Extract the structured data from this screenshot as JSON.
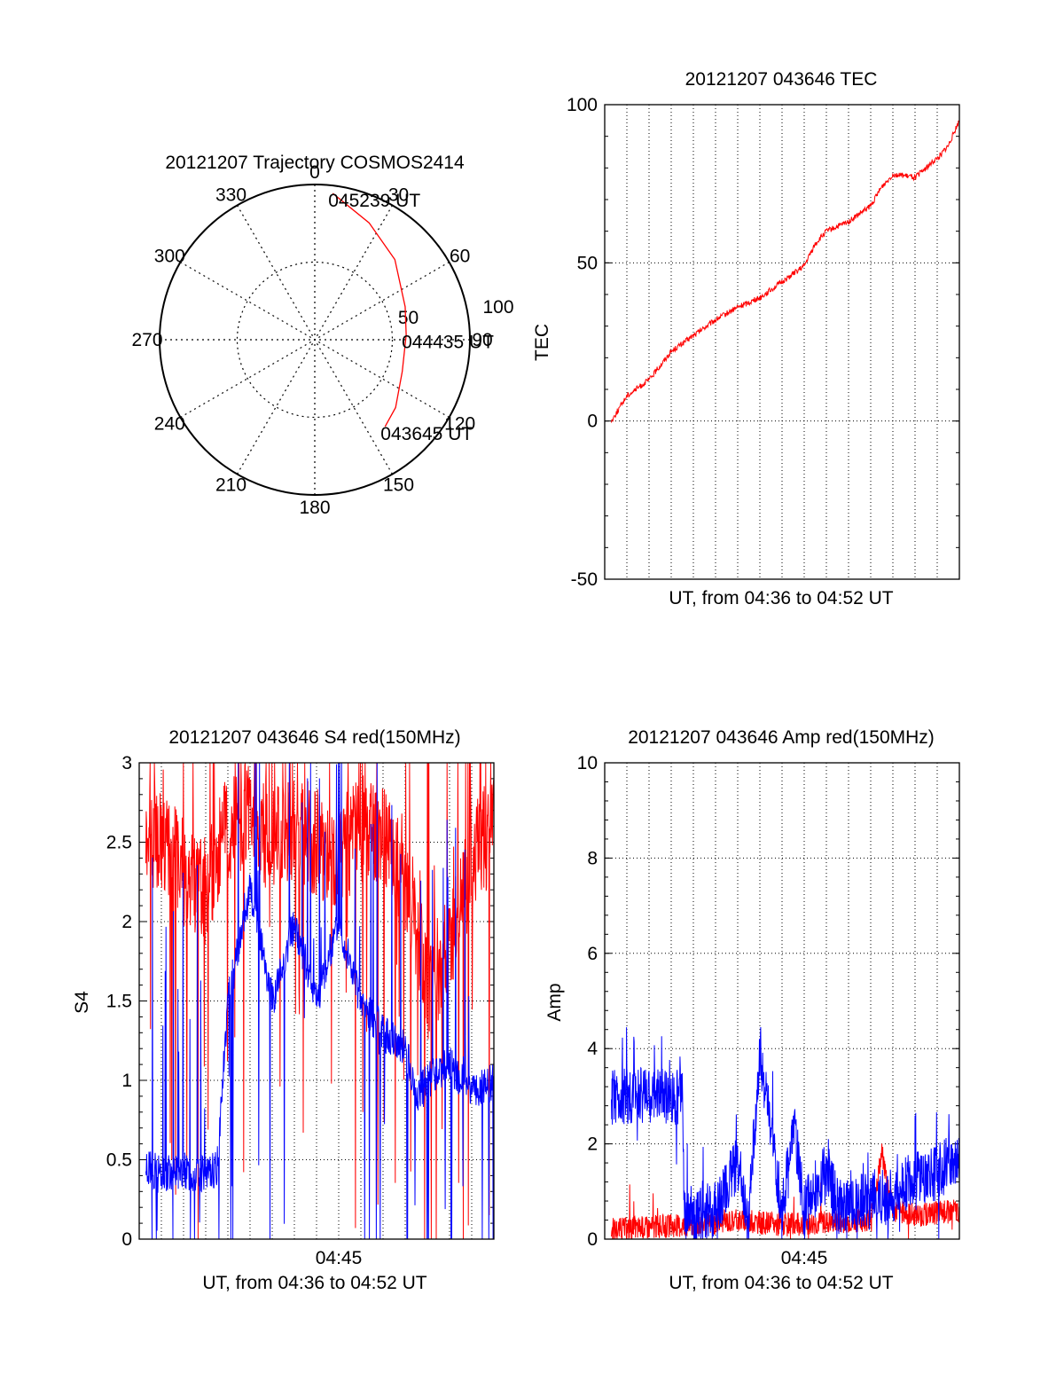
{
  "colors": {
    "red": "#ff0000",
    "blue": "#0000ff",
    "axis": "#000000",
    "grid": "#000000"
  },
  "chart_data": [
    {
      "type": "polar",
      "title": "20121207 Trajectory COSMOS2414",
      "angle_labels": [
        "0",
        "30",
        "60",
        "90",
        "120",
        "150",
        "180",
        "210",
        "240",
        "270",
        "300",
        "330"
      ],
      "radius_labels": [
        "50",
        "100"
      ],
      "rlim": [
        0,
        100
      ],
      "trajectory": {
        "color": "red",
        "points": [
          {
            "az": 7,
            "r": 95,
            "time": "045239 UT"
          },
          {
            "az": 25,
            "r": 83
          },
          {
            "az": 45,
            "r": 73
          },
          {
            "az": 70,
            "r": 62
          },
          {
            "az": 87,
            "r": 59,
            "time": "044435 UT"
          },
          {
            "az": 110,
            "r": 60
          },
          {
            "az": 130,
            "r": 68
          },
          {
            "az": 141,
            "r": 72,
            "time": "043645 UT"
          }
        ]
      },
      "annotations": [
        "045239 UT",
        "044435 UT",
        "043645 UT"
      ]
    },
    {
      "type": "line",
      "title": "20121207 043646 TEC",
      "xlabel": "UT, from 04:36 to 04:52 UT",
      "ylabel": "TEC",
      "xlim": [
        0,
        16
      ],
      "ylim": [
        -50,
        100
      ],
      "yticks": [
        "-50",
        "0",
        "50",
        "100"
      ],
      "grid": true,
      "series": [
        {
          "color": "red",
          "x": [
            0.3,
            1.0,
            2.0,
            3.0,
            4.0,
            5.0,
            6.0,
            7.0,
            8.0,
            9.0,
            9.5,
            10.0,
            11.0,
            12.0,
            12.5,
            13.0,
            14.0,
            14.5,
            15.0,
            15.5,
            16.0
          ],
          "y": [
            0,
            8,
            13,
            22,
            27,
            32,
            36,
            39,
            44,
            49,
            56,
            60,
            63,
            68,
            74,
            78,
            77,
            80,
            83,
            87,
            95
          ]
        }
      ]
    },
    {
      "type": "line",
      "title": "20121207 043646 S4 red(150MHz)",
      "xlabel": "UT, from 04:36 to 04:52 UT",
      "ylabel": "S4",
      "xlim": [
        0,
        16
      ],
      "ylim": [
        0,
        3
      ],
      "yticks": [
        "0",
        "0.5",
        "1",
        "1.5",
        "2",
        "2.5",
        "3"
      ],
      "xticks": [
        "04:45"
      ],
      "grid": true,
      "series": [
        {
          "color": "red",
          "x": [
            0.3,
            1.0,
            2.0,
            3.0,
            4.0,
            5.0,
            6.0,
            7.0,
            8.0,
            9.0,
            10.0,
            11.0,
            12.0,
            13.0,
            14.0,
            15.0,
            16.0
          ],
          "y": [
            2.6,
            2.5,
            2.3,
            2.2,
            2.6,
            2.7,
            2.5,
            2.6,
            2.5,
            2.4,
            2.6,
            2.5,
            2.3,
            1.6,
            1.8,
            2.4,
            2.6
          ]
        },
        {
          "color": "blue",
          "x": [
            0.3,
            1.0,
            2.0,
            3.0,
            3.5,
            4.0,
            5.0,
            6.0,
            7.0,
            8.0,
            9.0,
            10.0,
            11.0,
            12.0,
            12.5,
            13.0,
            14.0,
            15.0,
            16.0
          ],
          "y": [
            0.45,
            0.42,
            0.43,
            0.4,
            0.45,
            1.5,
            2.2,
            1.5,
            2.0,
            1.5,
            2.0,
            1.5,
            1.3,
            1.2,
            0.9,
            1.0,
            1.1,
            0.9,
            1.0
          ]
        }
      ]
    },
    {
      "type": "line",
      "title": "20121207 043646 Amp red(150MHz)",
      "xlabel": "UT, from 04:36 to 04:52 UT",
      "ylabel": "Amp",
      "xlim": [
        0,
        16
      ],
      "ylim": [
        0,
        10
      ],
      "yticks": [
        "0",
        "2",
        "4",
        "6",
        "8",
        "10"
      ],
      "xticks": [
        "04:45"
      ],
      "grid": true,
      "series": [
        {
          "color": "red",
          "x": [
            0.3,
            2.0,
            4.0,
            6.0,
            8.0,
            10.0,
            12.0,
            12.5,
            13.0,
            14.0,
            16.0
          ],
          "y": [
            0.2,
            0.25,
            0.3,
            0.4,
            0.3,
            0.35,
            0.4,
            1.8,
            0.6,
            0.5,
            0.6
          ]
        },
        {
          "color": "blue",
          "x": [
            0.3,
            2.0,
            3.5,
            3.6,
            5.0,
            6.0,
            6.5,
            7.0,
            8.0,
            8.5,
            9.0,
            10.0,
            10.5,
            12.0,
            13.0,
            14.0,
            15.0,
            16.0
          ],
          "y": [
            3.0,
            3.0,
            3.0,
            0.5,
            0.6,
            1.6,
            0.4,
            4.0,
            0.6,
            2.5,
            0.6,
            1.5,
            0.7,
            0.8,
            0.9,
            1.3,
            1.4,
            1.8
          ]
        }
      ]
    }
  ]
}
